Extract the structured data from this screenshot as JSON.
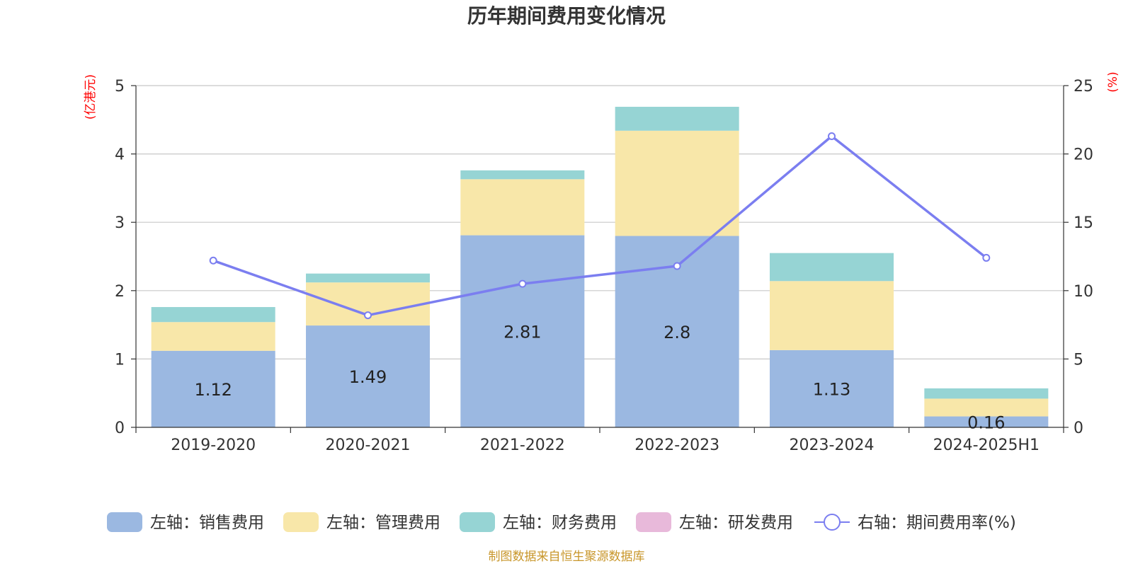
{
  "chart_data": {
    "type": "bar",
    "title": "历年期间费用变化情况",
    "categories": [
      "2019-2020",
      "2020-2021",
      "2021-2022",
      "2022-2023",
      "2023-2024",
      "2024-2025H1"
    ],
    "left_axis": {
      "unit": "(亿港元)",
      "ylim": [
        0,
        5
      ],
      "ticks": [
        "0",
        "1",
        "2",
        "3",
        "4",
        "5"
      ]
    },
    "right_axis": {
      "unit": "(%)",
      "ylim": [
        0,
        25
      ],
      "ticks": [
        "0",
        "5",
        "10",
        "15",
        "20",
        "25"
      ]
    },
    "series": [
      {
        "name": "左轴：销售费用",
        "type": "bar",
        "axis": "left",
        "color": "#9bb8e1",
        "values": [
          1.12,
          1.49,
          2.81,
          2.8,
          1.13,
          0.16
        ],
        "labels": [
          "1.12",
          "1.49",
          "2.81",
          "2.8",
          "1.13",
          "0.16"
        ]
      },
      {
        "name": "左轴：管理费用",
        "type": "bar",
        "axis": "left",
        "color": "#f8e7a9",
        "values": [
          0.42,
          0.63,
          0.82,
          1.54,
          1.01,
          0.26
        ]
      },
      {
        "name": "左轴：财务费用",
        "type": "bar",
        "axis": "left",
        "color": "#96d4d4",
        "values": [
          0.22,
          0.13,
          0.13,
          0.35,
          0.41,
          0.15
        ]
      },
      {
        "name": "左轴：研发费用",
        "type": "bar",
        "axis": "left",
        "color": "#e8b9da",
        "values": [
          0,
          0,
          0,
          0,
          0,
          0
        ]
      },
      {
        "name": "右轴：期间费用率(%)",
        "type": "line",
        "axis": "right",
        "color": "#7b7ef0",
        "values": [
          12.2,
          8.2,
          10.5,
          11.8,
          21.3,
          12.4
        ]
      }
    ],
    "grid": true,
    "legend_position": "bottom"
  },
  "source": "制图数据来自恒生聚源数据库"
}
